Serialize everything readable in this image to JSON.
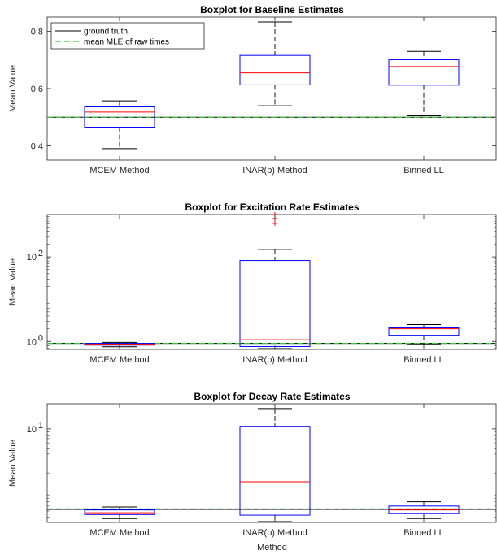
{
  "chart_data": [
    {
      "type": "box",
      "title": "Boxplot for Baseline Estimates",
      "ylabel": "Mean Value",
      "xlabel": "",
      "scale": "linear",
      "ylim": [
        0.35,
        0.85
      ],
      "yticks": [
        {
          "v": 0.4,
          "label": "0.4"
        },
        {
          "v": 0.6,
          "label": "0.6"
        },
        {
          "v": 0.8,
          "label": "0.8"
        }
      ],
      "categories": [
        "MCEM Method",
        "INAR(p) Method",
        "Binned LL"
      ],
      "boxes": [
        {
          "whisker_low": 0.39,
          "q1": 0.465,
          "median": 0.518,
          "q3": 0.536,
          "whisker_high": 0.557,
          "outliers": []
        },
        {
          "whisker_low": 0.54,
          "q1": 0.613,
          "median": 0.655,
          "q3": 0.716,
          "whisker_high": 0.833,
          "outliers": []
        },
        {
          "whisker_low": 0.505,
          "q1": 0.612,
          "median": 0.677,
          "q3": 0.701,
          "whisker_high": 0.73,
          "outliers": []
        }
      ],
      "reference_lines": {
        "ground_truth": 0.5,
        "mean_mle": 0.5
      },
      "legend": {
        "placement": "top-left",
        "entries": [
          "ground truth",
          "mean MLE of raw times"
        ]
      },
      "grid": false
    },
    {
      "type": "box",
      "title": "Boxplot for Excitation Rate Estimates",
      "ylabel": "Mean Value",
      "xlabel": "",
      "scale": "log",
      "ylim": [
        0.65,
        1000
      ],
      "yticks": [
        {
          "v": 1,
          "base": "10",
          "exp": "0"
        },
        {
          "v": 100,
          "base": "10",
          "exp": "2"
        }
      ],
      "categories": [
        "MCEM Method",
        "INAR(p) Method",
        "Binned LL"
      ],
      "boxes": [
        {
          "whisker_low": 0.75,
          "q1": 0.82,
          "median": 0.86,
          "q3": 0.9,
          "whisker_high": 0.95,
          "outliers": []
        },
        {
          "whisker_low": 0.68,
          "q1": 0.76,
          "median": 1.1,
          "q3": 82,
          "whisker_high": 150,
          "outliers": [
            620,
            800,
            1000
          ]
        },
        {
          "whisker_low": 0.85,
          "q1": 1.4,
          "median": 2.0,
          "q3": 2.1,
          "whisker_high": 2.5,
          "outliers": []
        }
      ],
      "reference_lines": {
        "ground_truth": 0.9,
        "mean_mle": 0.9
      },
      "grid": false
    },
    {
      "type": "box",
      "title": "Boxplot for Decay Rate Estimates",
      "ylabel": "Mean Value",
      "xlabel": "Method",
      "scale": "log",
      "ylim": [
        0.33,
        25
      ],
      "yticks": [
        {
          "v": 10,
          "base": "10",
          "exp": "1"
        }
      ],
      "categories": [
        "MCEM Method",
        "INAR(p) Method",
        "Binned LL"
      ],
      "boxes": [
        {
          "whisker_low": 0.38,
          "q1": 0.44,
          "median": 0.47,
          "q3": 0.52,
          "whisker_high": 0.58,
          "outliers": []
        },
        {
          "whisker_low": 0.34,
          "q1": 0.43,
          "median": 1.45,
          "q3": 11,
          "whisker_high": 21,
          "outliers": []
        },
        {
          "whisker_low": 0.38,
          "q1": 0.46,
          "median": 0.52,
          "q3": 0.6,
          "whisker_high": 0.7,
          "outliers": []
        }
      ],
      "reference_lines": {
        "ground_truth": 0.53,
        "mean_mle": 0.54
      },
      "grid": false
    }
  ],
  "colors": {
    "box": "#0000ff",
    "median": "#ff0000",
    "whisker": "#000000",
    "ground_truth": "#000000",
    "mean_mle": "#33cc33",
    "outlier": "#ff0000"
  }
}
